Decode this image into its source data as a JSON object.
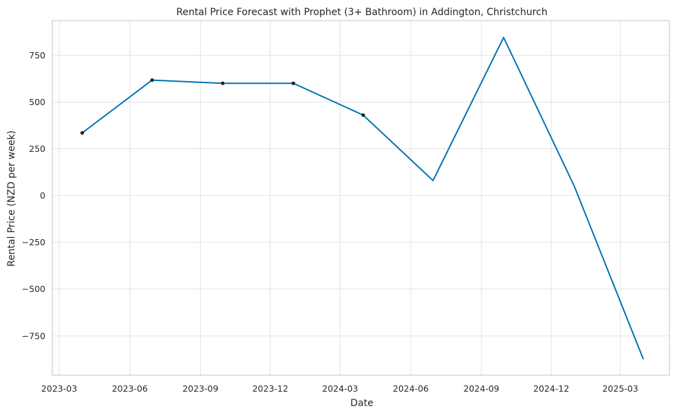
{
  "chart_data": {
    "type": "line",
    "title": "Rental Price Forecast with Prophet (3+ Bathroom) in Addington, Christchurch",
    "xlabel": "Date",
    "ylabel": "Rental Price (NZD per week)",
    "x_ticks": [
      "2023-03-01",
      "2023-06-01",
      "2023-09-01",
      "2023-12-01",
      "2024-03-01",
      "2024-06-01",
      "2024-09-01",
      "2024-12-01",
      "2025-03-01"
    ],
    "x_tick_labels": [
      "2023-03",
      "2023-06",
      "2023-09",
      "2023-12",
      "2024-03",
      "2024-06",
      "2024-09",
      "2024-12",
      "2025-03"
    ],
    "xlim": [
      "2023-02-20",
      "2025-05-04"
    ],
    "y_ticks": [
      -750,
      -500,
      -250,
      0,
      250,
      500,
      750
    ],
    "y_tick_labels": [
      "−750",
      "−500",
      "−250",
      "0",
      "250",
      "500",
      "750"
    ],
    "ylim": [
      -960,
      935
    ],
    "grid": true,
    "series": [
      {
        "color": "#0072b2",
        "x": [
          "2023-03-31",
          "2023-06-30",
          "2023-09-30",
          "2023-12-31",
          "2024-03-31",
          "2024-06-30",
          "2024-09-30",
          "2024-12-31",
          "2025-03-31"
        ],
        "y": [
          335,
          617,
          600,
          600,
          430,
          80,
          845,
          50,
          -875
        ]
      }
    ],
    "observed": {
      "color": "#1f1f1f",
      "x": [
        "2023-03-31",
        "2023-06-30",
        "2023-09-30",
        "2023-12-31",
        "2024-03-31"
      ],
      "y": [
        335,
        617,
        600,
        600,
        430
      ]
    }
  }
}
